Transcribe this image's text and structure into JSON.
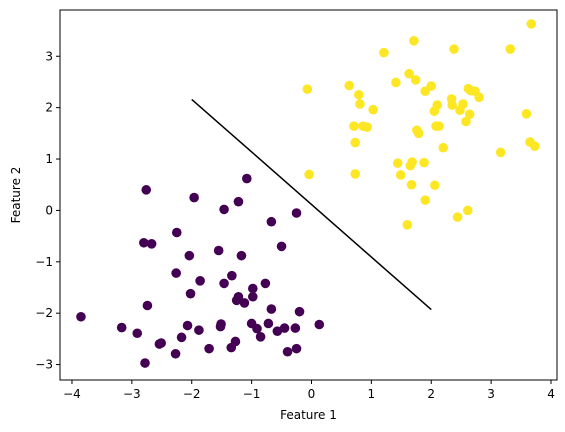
{
  "chart_data": {
    "type": "scatter",
    "title": "",
    "xlabel": "Feature 1",
    "ylabel": "Feature 2",
    "xlim": [
      -4.2,
      4.1
    ],
    "ylim": [
      -3.3,
      3.9
    ],
    "xticks": [
      -4,
      -3,
      -2,
      -1,
      0,
      1,
      2,
      3,
      4
    ],
    "yticks": [
      -3,
      -2,
      -1,
      0,
      1,
      2,
      3
    ],
    "grid": false,
    "legend": "none",
    "series": [
      {
        "color": "#440154",
        "points": [
          [
            -3.85,
            -2.07
          ],
          [
            -3.17,
            -2.28
          ],
          [
            -2.91,
            -2.39
          ],
          [
            -2.78,
            -2.97
          ],
          [
            -2.76,
            0.4
          ],
          [
            -2.8,
            -0.63
          ],
          [
            -2.74,
            -1.85
          ],
          [
            -2.67,
            -0.65
          ],
          [
            -2.51,
            -2.58
          ],
          [
            -2.54,
            -2.6
          ],
          [
            -2.27,
            -2.79
          ],
          [
            -2.26,
            -1.22
          ],
          [
            -2.25,
            -0.43
          ],
          [
            -2.17,
            -2.47
          ],
          [
            -2.07,
            -2.24
          ],
          [
            -2.04,
            -0.88
          ],
          [
            -2.02,
            -1.62
          ],
          [
            -1.96,
            0.25
          ],
          [
            -1.88,
            -2.33
          ],
          [
            -1.86,
            -1.37
          ],
          [
            -1.71,
            -2.69
          ],
          [
            -1.55,
            -0.78
          ],
          [
            -1.52,
            -2.26
          ],
          [
            -1.51,
            -2.21
          ],
          [
            -1.46,
            -1.42
          ],
          [
            -1.46,
            0.02
          ],
          [
            -1.34,
            -2.67
          ],
          [
            -1.33,
            -1.27
          ],
          [
            -1.27,
            -2.55
          ],
          [
            -1.25,
            -1.75
          ],
          [
            -1.22,
            -1.68
          ],
          [
            -1.22,
            0.17
          ],
          [
            -1.17,
            -0.88
          ],
          [
            -1.12,
            -1.8
          ],
          [
            -1.08,
            0.62
          ],
          [
            -1.0,
            -2.2
          ],
          [
            -0.98,
            -1.68
          ],
          [
            -0.98,
            -1.52
          ],
          [
            -0.91,
            -2.3
          ],
          [
            -0.85,
            -2.46
          ],
          [
            -0.77,
            -1.42
          ],
          [
            -0.72,
            -2.2
          ],
          [
            -0.67,
            -1.92
          ],
          [
            -0.67,
            -0.22
          ],
          [
            -0.57,
            -2.35
          ],
          [
            -0.5,
            -0.7
          ],
          [
            -0.45,
            -2.29
          ],
          [
            -0.4,
            -2.75
          ],
          [
            -0.27,
            -2.29
          ],
          [
            -0.25,
            -0.05
          ],
          [
            -0.25,
            -2.69
          ],
          [
            -0.2,
            -1.97
          ],
          [
            0.13,
            -2.22
          ]
        ]
      },
      {
        "color": "#fde725",
        "points": [
          [
            -0.07,
            2.36
          ],
          [
            -0.04,
            0.7
          ],
          [
            0.63,
            2.43
          ],
          [
            0.71,
            1.64
          ],
          [
            0.73,
            1.32
          ],
          [
            0.73,
            0.71
          ],
          [
            0.79,
            2.25
          ],
          [
            0.81,
            2.07
          ],
          [
            0.86,
            1.64
          ],
          [
            0.93,
            1.62
          ],
          [
            1.03,
            1.96
          ],
          [
            1.21,
            3.07
          ],
          [
            1.41,
            2.49
          ],
          [
            1.44,
            0.92
          ],
          [
            1.49,
            0.69
          ],
          [
            1.6,
            -0.28
          ],
          [
            1.63,
            2.66
          ],
          [
            1.65,
            0.87
          ],
          [
            1.67,
            0.5
          ],
          [
            1.68,
            0.94
          ],
          [
            1.71,
            3.3
          ],
          [
            1.74,
            2.54
          ],
          [
            1.76,
            1.56
          ],
          [
            1.79,
            1.5
          ],
          [
            1.88,
            0.93
          ],
          [
            1.9,
            0.2
          ],
          [
            1.9,
            2.32
          ],
          [
            2.0,
            2.42
          ],
          [
            2.05,
            1.93
          ],
          [
            2.06,
            0.49
          ],
          [
            2.08,
            1.64
          ],
          [
            2.1,
            2.05
          ],
          [
            2.13,
            1.64
          ],
          [
            2.2,
            1.22
          ],
          [
            2.34,
            2.17
          ],
          [
            2.35,
            2.05
          ],
          [
            2.38,
            3.14
          ],
          [
            2.44,
            -0.13
          ],
          [
            2.48,
            1.95
          ],
          [
            2.53,
            2.07
          ],
          [
            2.58,
            1.73
          ],
          [
            2.61,
            -0.0
          ],
          [
            2.62,
            2.37
          ],
          [
            2.64,
            1.87
          ],
          [
            2.66,
            2.33
          ],
          [
            2.73,
            2.32
          ],
          [
            2.8,
            2.2
          ],
          [
            3.16,
            1.13
          ],
          [
            3.32,
            3.14
          ],
          [
            3.59,
            1.88
          ],
          [
            3.65,
            1.33
          ],
          [
            3.67,
            3.63
          ],
          [
            3.73,
            1.25
          ]
        ]
      }
    ],
    "line": {
      "color": "#000000",
      "x": [
        -2.0,
        2.0
      ],
      "y": [
        2.16,
        -1.93
      ]
    }
  }
}
